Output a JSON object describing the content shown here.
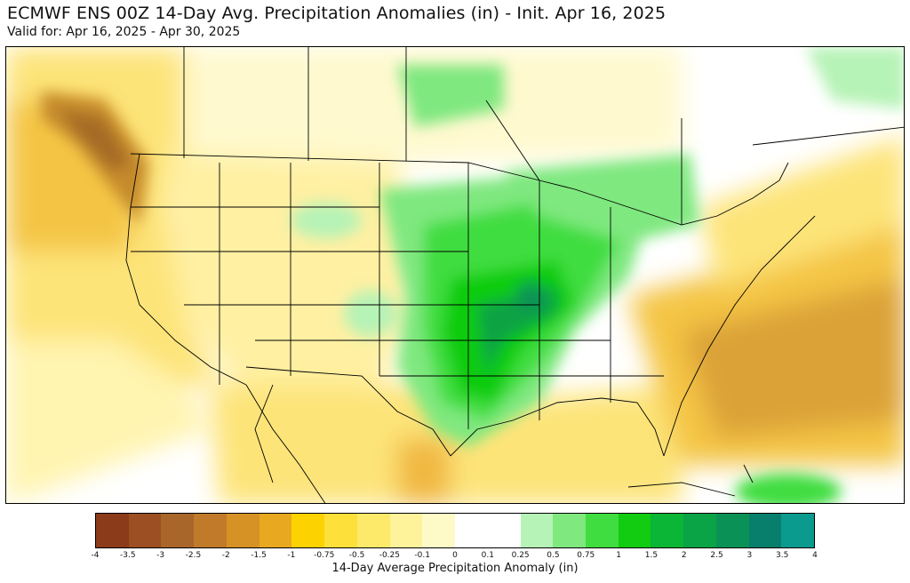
{
  "header": {
    "title": "ECMWF ENS 00Z 14-Day Avg. Precipitation Anomalies (in) - Init. Apr 16, 2025",
    "subtitle": "Valid for: Apr 16, 2025 - Apr 30, 2025"
  },
  "legend": {
    "label": "14-Day Average Precipitation Anomaly (in)",
    "ticks": [
      "-4",
      "-3.5",
      "-3",
      "-2.5",
      "-2",
      "-1.5",
      "-1",
      "-0.75",
      "-0.5",
      "-0.25",
      "-0.1",
      "0",
      "0.1",
      "0.25",
      "0.5",
      "0.75",
      "1",
      "1.5",
      "2",
      "2.5",
      "3",
      "3.5",
      "4"
    ],
    "colors": [
      "#8b3a1a",
      "#9c4f22",
      "#a8662a",
      "#c07a2a",
      "#d69224",
      "#e8a820",
      "#fcd200",
      "#fde03a",
      "#fde96a",
      "#fef29a",
      "#fefac8",
      "#ffffff",
      "#ffffff",
      "#b6f3b6",
      "#7fe87f",
      "#3fdd3f",
      "#11cc11",
      "#0bb535",
      "#0aa345",
      "#0a9256",
      "#087f6c",
      "#0a9a8e",
      "#11a8be"
    ]
  },
  "map": {
    "colors": {
      "ocean_dry_light": "#fff6b0",
      "dry_yellow": "#fce35a",
      "dry_orange": "#f1bb2a",
      "dry_brown": "#c58a2b",
      "wet_light": "#b6f3b6",
      "wet_mid": "#3fdd3f",
      "wet_dark": "#0a9a4a",
      "wet_teal": "#11a8be",
      "borders": "#000000"
    }
  }
}
